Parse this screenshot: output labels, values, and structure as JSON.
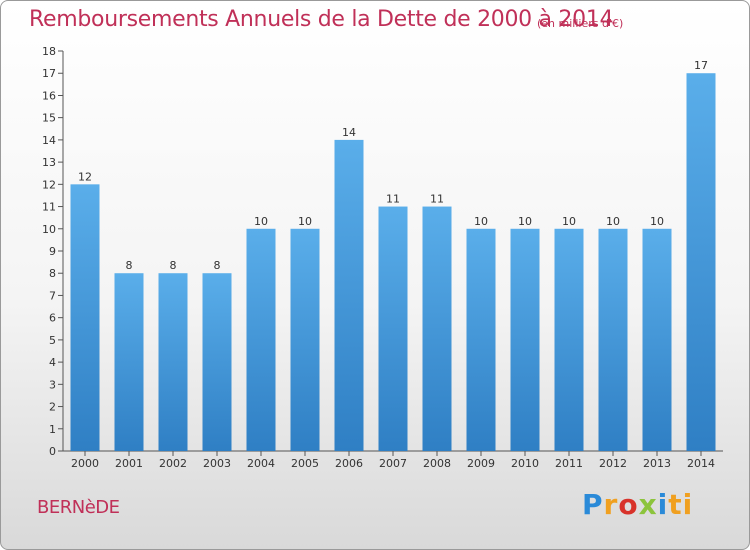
{
  "header": {
    "title": "Remboursements Annuels de la Dette de 2000 à 2014",
    "subtitle": "(en milliers d'€)"
  },
  "footer": {
    "town": "BERNèDE",
    "logo_text": "Proxiti"
  },
  "colors": {
    "title": "#c03058",
    "bar_light": "#5aaeea",
    "bar_dark": "#2f7fc4",
    "axis": "#333333"
  },
  "chart_data": {
    "type": "bar",
    "title": "Remboursements Annuels de la Dette de 2000 à 2014",
    "xlabel": "",
    "ylabel": "",
    "categories": [
      "2000",
      "2001",
      "2002",
      "2003",
      "2004",
      "2005",
      "2006",
      "2007",
      "2008",
      "2009",
      "2010",
      "2011",
      "2012",
      "2013",
      "2014"
    ],
    "values": [
      12,
      8,
      8,
      8,
      10,
      10,
      14,
      11,
      11,
      10,
      10,
      10,
      10,
      10,
      17
    ],
    "ylim": [
      0,
      18
    ],
    "yticks": [
      0,
      1,
      2,
      3,
      4,
      5,
      6,
      7,
      8,
      9,
      10,
      11,
      12,
      13,
      14,
      15,
      16,
      17,
      18
    ],
    "grid": false,
    "legend": "none"
  }
}
